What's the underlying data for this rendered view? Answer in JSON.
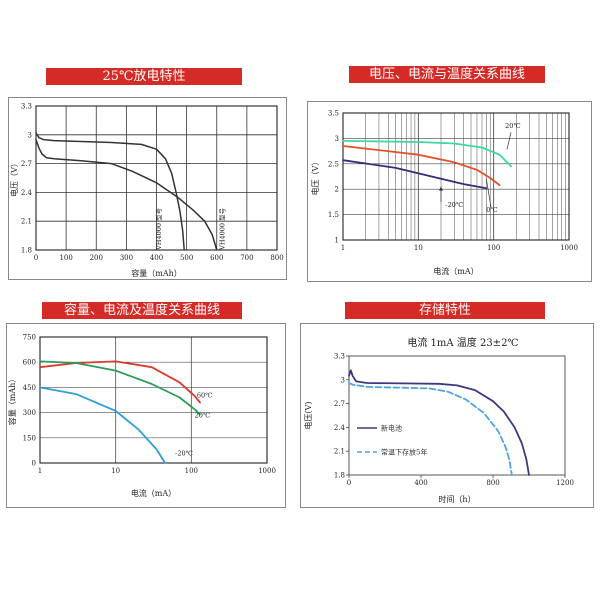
{
  "chart_data": [
    {
      "id": "c1",
      "type": "line",
      "title": "25℃放电特性",
      "xlabel": "容量（mAh）",
      "ylabel": "电压（V）",
      "xlim": [
        0,
        800
      ],
      "ylim": [
        1.8,
        3.3
      ],
      "xticks": [
        0,
        100,
        200,
        300,
        400,
        500,
        600,
        700,
        800
      ],
      "yticks": [
        1.8,
        2.1,
        2.4,
        2.7,
        3.0,
        3.3
      ],
      "grid": true,
      "series": [
        {
          "name": "",
          "color": "#333333",
          "points": [
            [
              0,
              3.02
            ],
            [
              10,
              2.97
            ],
            [
              25,
              2.95
            ],
            [
              60,
              2.94
            ],
            [
              150,
              2.93
            ],
            [
              250,
              2.92
            ],
            [
              350,
              2.9
            ],
            [
              400,
              2.85
            ],
            [
              430,
              2.75
            ],
            [
              450,
              2.6
            ],
            [
              465,
              2.4
            ],
            [
              478,
              2.2
            ],
            [
              487,
              2.0
            ],
            [
              492,
              1.8
            ]
          ]
        },
        {
          "name": "",
          "color": "#333333",
          "points": [
            [
              0,
              2.95
            ],
            [
              10,
              2.86
            ],
            [
              20,
              2.8
            ],
            [
              35,
              2.76
            ],
            [
              60,
              2.75
            ],
            [
              150,
              2.73
            ],
            [
              250,
              2.7
            ],
            [
              320,
              2.62
            ],
            [
              400,
              2.5
            ],
            [
              470,
              2.35
            ],
            [
              520,
              2.22
            ],
            [
              560,
              2.1
            ],
            [
              585,
              1.96
            ],
            [
              600,
              1.8
            ]
          ]
        }
      ],
      "annotations": [
        {
          "text": "VH4000 型号",
          "x": 415,
          "y": 2.02
        },
        {
          "text": "VH4000 型号",
          "x": 625,
          "y": 2.02
        }
      ]
    },
    {
      "id": "c2",
      "type": "line",
      "title": "电压、电流与温度关系曲线",
      "xlabel": "电流（mA）",
      "ylabel": "电压（V）",
      "xscale": "log",
      "xlim": [
        1,
        1000
      ],
      "ylim": [
        1.0,
        3.5
      ],
      "xticks": [
        1,
        10,
        100,
        1000
      ],
      "yticks": [
        1.0,
        1.5,
        2.0,
        2.5,
        3.0,
        3.5
      ],
      "grid": true,
      "series": [
        {
          "name": "20℃",
          "color": "#3fd6a3",
          "points": [
            [
              1,
              2.95
            ],
            [
              10,
              2.93
            ],
            [
              30,
              2.9
            ],
            [
              70,
              2.82
            ],
            [
              120,
              2.68
            ],
            [
              170,
              2.45
            ]
          ]
        },
        {
          "name": "0℃",
          "color": "#e0522a",
          "points": [
            [
              1,
              2.85
            ],
            [
              10,
              2.68
            ],
            [
              30,
              2.53
            ],
            [
              60,
              2.38
            ],
            [
              90,
              2.22
            ],
            [
              120,
              2.08
            ]
          ]
        },
        {
          "name": "-20℃",
          "color": "#3b2a7a",
          "points": [
            [
              1,
              2.57
            ],
            [
              5,
              2.42
            ],
            [
              15,
              2.25
            ],
            [
              40,
              2.1
            ],
            [
              80,
              2.02
            ]
          ]
        }
      ],
      "annotations": [
        {
          "text": "20℃",
          "x": 180,
          "y": 3.2
        },
        {
          "text": "0℃",
          "x": 95,
          "y": 1.55
        },
        {
          "text": "-20℃",
          "x": 30,
          "y": 1.65
        }
      ]
    },
    {
      "id": "c3",
      "type": "line",
      "title": "容量、电流及温度关系曲线",
      "xlabel": "电流（mA）",
      "ylabel": "容量（mAh）",
      "xscale": "log",
      "xlim": [
        1,
        1000
      ],
      "ylim": [
        0,
        750
      ],
      "xticks": [
        1,
        10,
        100,
        1000
      ],
      "yticks": [
        0,
        150,
        300,
        450,
        600,
        750
      ],
      "grid": true,
      "series": [
        {
          "name": "60℃",
          "color": "#d93a2b",
          "points": [
            [
              1,
              570
            ],
            [
              3,
              595
            ],
            [
              10,
              605
            ],
            [
              30,
              570
            ],
            [
              70,
              480
            ],
            [
              110,
              400
            ],
            [
              130,
              360
            ]
          ]
        },
        {
          "name": "20℃",
          "color": "#2e9a5c",
          "points": [
            [
              1,
              605
            ],
            [
              3,
              595
            ],
            [
              10,
              550
            ],
            [
              30,
              470
            ],
            [
              70,
              390
            ],
            [
              110,
              320
            ],
            [
              130,
              290
            ]
          ]
        },
        {
          "name": "-20℃",
          "color": "#2f9ed6",
          "points": [
            [
              1,
              450
            ],
            [
              3,
              410
            ],
            [
              10,
              310
            ],
            [
              20,
              200
            ],
            [
              35,
              80
            ],
            [
              45,
              0
            ]
          ]
        }
      ],
      "annotations": [
        {
          "text": "60℃",
          "x": 150,
          "y": 390
        },
        {
          "text": "20℃",
          "x": 140,
          "y": 270
        },
        {
          "text": "-20℃",
          "x": 80,
          "y": 45
        }
      ]
    },
    {
      "id": "c4",
      "type": "line",
      "title": "存储特性",
      "subtitle": "电流 1mA    温度 23±2℃",
      "xlabel": "时间（h）",
      "ylabel": "电压(V)",
      "xlim": [
        0,
        1200
      ],
      "ylim": [
        1.8,
        3.3
      ],
      "xticks": [
        0,
        400,
        800,
        1200
      ],
      "yticks": [
        1.8,
        2.1,
        2.4,
        2.7,
        3.0,
        3.3
      ],
      "grid": false,
      "series": [
        {
          "name": "新电池",
          "color": "#3b3a7e",
          "dash": false,
          "points": [
            [
              0,
              3.05
            ],
            [
              10,
              3.12
            ],
            [
              20,
              3.05
            ],
            [
              40,
              2.98
            ],
            [
              100,
              2.96
            ],
            [
              300,
              2.955
            ],
            [
              500,
              2.95
            ],
            [
              600,
              2.93
            ],
            [
              700,
              2.87
            ],
            [
              800,
              2.73
            ],
            [
              860,
              2.6
            ],
            [
              920,
              2.4
            ],
            [
              960,
              2.2
            ],
            [
              985,
              2.0
            ],
            [
              1000,
              1.8
            ]
          ]
        },
        {
          "name": "常温下存放5年",
          "color": "#4fa3e0",
          "dash": true,
          "points": [
            [
              0,
              2.96
            ],
            [
              20,
              2.94
            ],
            [
              100,
              2.91
            ],
            [
              300,
              2.9
            ],
            [
              450,
              2.89
            ],
            [
              550,
              2.85
            ],
            [
              650,
              2.75
            ],
            [
              750,
              2.58
            ],
            [
              830,
              2.35
            ],
            [
              870,
              2.15
            ],
            [
              890,
              2.0
            ],
            [
              905,
              1.8
            ]
          ]
        }
      ]
    }
  ]
}
